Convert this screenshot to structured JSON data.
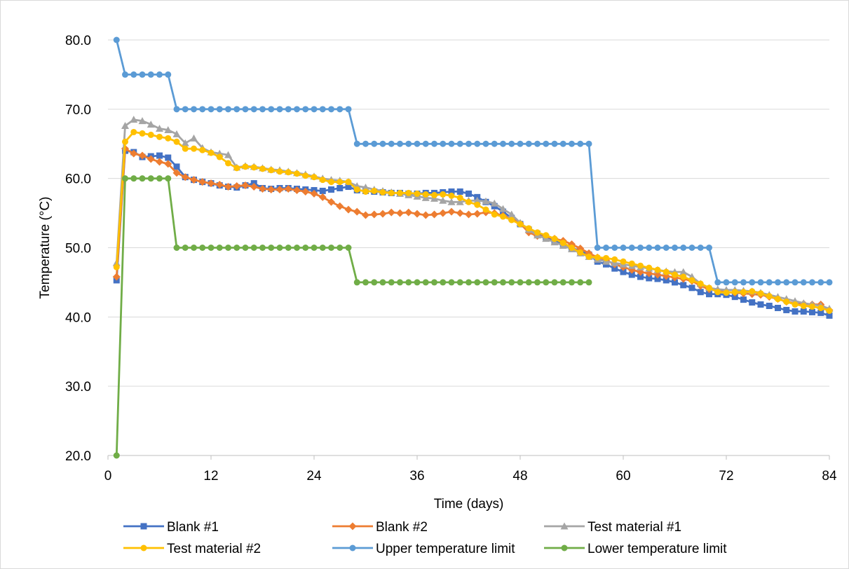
{
  "chart_data": {
    "type": "line",
    "xlabel": "Time (days)",
    "ylabel": "Temperature (°C)",
    "xlim": [
      0,
      84
    ],
    "ylim": [
      20,
      80
    ],
    "x_ticks": [
      "0",
      "12",
      "24",
      "36",
      "48",
      "60",
      "72",
      "84"
    ],
    "y_ticks": [
      "20.0",
      "30.0",
      "40.0",
      "50.0",
      "60.0",
      "70.0",
      "80.0"
    ],
    "grid": "horizontal",
    "legend_position": "bottom",
    "series": [
      {
        "name": "Blank #1",
        "color": "#4472c4",
        "marker": "square",
        "x": [
          1,
          2,
          3,
          4,
          5,
          6,
          7,
          8,
          9,
          10,
          11,
          12,
          13,
          14,
          15,
          16,
          17,
          18,
          19,
          20,
          21,
          22,
          23,
          24,
          25,
          26,
          27,
          28,
          29,
          30,
          31,
          32,
          33,
          34,
          35,
          36,
          37,
          38,
          39,
          40,
          41,
          42,
          43,
          44,
          45,
          46,
          47,
          48,
          49,
          50,
          51,
          52,
          53,
          54,
          55,
          56,
          57,
          58,
          59,
          60,
          61,
          62,
          63,
          64,
          65,
          66,
          67,
          68,
          69,
          70,
          71,
          72,
          73,
          74,
          75,
          76,
          77,
          78,
          79,
          80,
          81,
          82,
          83,
          84
        ],
        "y": [
          45.3,
          64.0,
          63.8,
          63.1,
          63.2,
          63.3,
          63.0,
          61.7,
          60.2,
          59.8,
          59.5,
          59.3,
          59.0,
          58.8,
          58.7,
          59.0,
          59.3,
          58.6,
          58.5,
          58.6,
          58.6,
          58.5,
          58.4,
          58.3,
          58.2,
          58.4,
          58.6,
          58.8,
          58.3,
          58.2,
          58.1,
          58.0,
          57.9,
          57.9,
          57.8,
          57.8,
          57.9,
          57.9,
          58.0,
          58.1,
          58.1,
          57.8,
          57.3,
          56.6,
          56.0,
          55.2,
          54.3,
          53.4,
          52.6,
          52.0,
          51.5,
          51.0,
          50.5,
          50.0,
          49.5,
          49.0,
          48.0,
          47.6,
          47.0,
          46.5,
          46.1,
          45.8,
          45.6,
          45.5,
          45.3,
          45.0,
          44.6,
          44.2,
          43.6,
          43.3,
          43.3,
          43.2,
          42.9,
          42.5,
          42.1,
          41.8,
          41.6,
          41.3,
          41.0,
          40.8,
          40.8,
          40.7,
          40.6,
          40.2
        ]
      },
      {
        "name": "Blank #2",
        "color": "#ed7d31",
        "marker": "diamond",
        "x": [
          1,
          2,
          3,
          4,
          5,
          6,
          7,
          8,
          9,
          10,
          11,
          12,
          13,
          14,
          15,
          16,
          17,
          18,
          19,
          20,
          21,
          22,
          23,
          24,
          25,
          26,
          27,
          28,
          29,
          30,
          31,
          32,
          33,
          34,
          35,
          36,
          37,
          38,
          39,
          40,
          41,
          42,
          43,
          44,
          45,
          46,
          47,
          48,
          49,
          50,
          51,
          52,
          53,
          54,
          55,
          56,
          57,
          58,
          59,
          60,
          61,
          62,
          63,
          64,
          65,
          66,
          67,
          68,
          69,
          70,
          71,
          72,
          73,
          74,
          75,
          76,
          77,
          78,
          79,
          80,
          81,
          82,
          83,
          84
        ],
        "y": [
          45.8,
          64.3,
          63.6,
          63.3,
          62.8,
          62.4,
          62.1,
          60.8,
          60.2,
          59.8,
          59.5,
          59.3,
          59.1,
          58.8,
          58.9,
          59.0,
          58.8,
          58.5,
          58.4,
          58.4,
          58.5,
          58.3,
          58.1,
          57.8,
          57.3,
          56.6,
          56.0,
          55.5,
          55.2,
          54.7,
          54.8,
          54.9,
          55.1,
          55.0,
          55.1,
          54.9,
          54.7,
          54.8,
          55.0,
          55.2,
          55.0,
          54.8,
          54.9,
          55.1,
          55.0,
          54.6,
          54.2,
          53.5,
          52.2,
          51.7,
          51.6,
          51.3,
          51.0,
          50.5,
          49.9,
          49.2,
          48.6,
          48.2,
          47.6,
          47.2,
          46.8,
          46.5,
          46.3,
          46.1,
          45.9,
          45.7,
          45.5,
          45.2,
          44.5,
          44.0,
          43.8,
          43.6,
          43.5,
          43.4,
          43.3,
          43.2,
          42.9,
          42.6,
          42.2,
          42.0,
          41.9,
          41.8,
          41.8,
          41.0
        ]
      },
      {
        "name": "Test material #1",
        "color": "#a5a5a5",
        "marker": "triangle",
        "x": [
          1,
          2,
          3,
          4,
          5,
          6,
          7,
          8,
          9,
          10,
          11,
          12,
          13,
          14,
          15,
          16,
          17,
          18,
          19,
          20,
          21,
          22,
          23,
          24,
          25,
          26,
          27,
          28,
          29,
          30,
          31,
          32,
          33,
          34,
          35,
          36,
          37,
          38,
          39,
          40,
          41,
          42,
          43,
          44,
          45,
          46,
          47,
          48,
          49,
          50,
          51,
          52,
          53,
          54,
          55,
          56,
          57,
          58,
          59,
          60,
          61,
          62,
          63,
          64,
          65,
          66,
          67,
          68,
          69,
          70,
          71,
          72,
          73,
          74,
          75,
          76,
          77,
          78,
          79,
          80,
          81,
          82,
          83,
          84
        ],
        "y": [
          47.8,
          67.6,
          68.5,
          68.3,
          67.8,
          67.2,
          67.0,
          66.4,
          65.1,
          65.8,
          64.4,
          63.8,
          63.6,
          63.4,
          61.6,
          61.8,
          61.7,
          61.5,
          61.3,
          61.2,
          61.0,
          60.8,
          60.6,
          60.3,
          60.0,
          59.8,
          59.7,
          59.5,
          58.9,
          58.7,
          58.4,
          58.2,
          58.0,
          57.8,
          57.6,
          57.4,
          57.2,
          57.1,
          56.8,
          56.6,
          56.6,
          56.8,
          56.8,
          56.7,
          56.4,
          55.6,
          54.8,
          53.6,
          52.6,
          51.8,
          51.3,
          50.8,
          50.3,
          49.8,
          49.2,
          48.7,
          48.3,
          48.0,
          47.8,
          47.6,
          47.4,
          47.2,
          47.0,
          46.8,
          46.6,
          46.5,
          46.5,
          45.8,
          44.8,
          44.2,
          44.0,
          43.9,
          43.9,
          43.8,
          43.7,
          43.5,
          43.2,
          42.9,
          42.6,
          42.3,
          42.0,
          41.8,
          41.6,
          41.2
        ]
      },
      {
        "name": "Test material #2",
        "color": "#ffc000",
        "marker": "circle",
        "x": [
          1,
          2,
          3,
          4,
          5,
          6,
          7,
          8,
          9,
          10,
          11,
          12,
          13,
          14,
          15,
          16,
          17,
          18,
          19,
          20,
          21,
          22,
          23,
          24,
          25,
          26,
          27,
          28,
          29,
          30,
          31,
          32,
          33,
          34,
          35,
          36,
          37,
          38,
          39,
          40,
          41,
          42,
          43,
          44,
          45,
          46,
          47,
          48,
          49,
          50,
          51,
          52,
          53,
          54,
          55,
          56,
          57,
          58,
          59,
          60,
          61,
          62,
          63,
          64,
          65,
          66,
          67,
          68,
          69,
          70,
          71,
          72,
          73,
          74,
          75,
          76,
          77,
          78,
          79,
          80,
          81,
          82,
          83,
          84
        ],
        "y": [
          47.2,
          65.3,
          66.7,
          66.5,
          66.3,
          66.0,
          65.8,
          65.3,
          64.3,
          64.3,
          64.1,
          63.7,
          63.1,
          62.2,
          61.5,
          61.7,
          61.6,
          61.4,
          61.2,
          61.0,
          60.9,
          60.7,
          60.4,
          60.2,
          59.8,
          59.5,
          59.5,
          59.5,
          58.4,
          58.1,
          58.2,
          58.0,
          57.9,
          57.9,
          57.9,
          57.8,
          57.7,
          57.6,
          57.7,
          57.5,
          57.2,
          56.6,
          56.2,
          55.5,
          54.8,
          54.5,
          54.0,
          53.4,
          52.8,
          52.2,
          51.8,
          51.3,
          50.7,
          50.0,
          49.3,
          48.7,
          48.6,
          48.5,
          48.3,
          48.0,
          47.7,
          47.4,
          47.1,
          46.8,
          46.5,
          46.1,
          45.8,
          45.3,
          44.8,
          44.2,
          43.6,
          43.5,
          43.6,
          43.6,
          43.7,
          43.4,
          43.0,
          42.6,
          42.2,
          41.8,
          41.6,
          41.5,
          41.3,
          40.9
        ]
      },
      {
        "name": "Upper temperature limit",
        "color": "#5b9bd5",
        "marker": "circle",
        "x": [
          1,
          2,
          3,
          4,
          5,
          6,
          7,
          8,
          9,
          10,
          11,
          12,
          13,
          14,
          15,
          16,
          17,
          18,
          19,
          20,
          21,
          22,
          23,
          24,
          25,
          26,
          27,
          28,
          29,
          30,
          31,
          32,
          33,
          34,
          35,
          36,
          37,
          38,
          39,
          40,
          41,
          42,
          43,
          44,
          45,
          46,
          47,
          48,
          49,
          50,
          51,
          52,
          53,
          54,
          55,
          56,
          57,
          58,
          59,
          60,
          61,
          62,
          63,
          64,
          65,
          66,
          67,
          68,
          69,
          70,
          71,
          72,
          73,
          74,
          75,
          76,
          77,
          78,
          79,
          80,
          81,
          82,
          83,
          84
        ],
        "y": [
          80,
          75,
          75,
          75,
          75,
          75,
          75,
          70,
          70,
          70,
          70,
          70,
          70,
          70,
          70,
          70,
          70,
          70,
          70,
          70,
          70,
          70,
          70,
          70,
          70,
          70,
          70,
          70,
          65,
          65,
          65,
          65,
          65,
          65,
          65,
          65,
          65,
          65,
          65,
          65,
          65,
          65,
          65,
          65,
          65,
          65,
          65,
          65,
          65,
          65,
          65,
          65,
          65,
          65,
          65,
          65,
          50,
          50,
          50,
          50,
          50,
          50,
          50,
          50,
          50,
          50,
          50,
          50,
          50,
          50,
          45,
          45,
          45,
          45,
          45,
          45,
          45,
          45,
          45,
          45,
          45,
          45,
          45,
          45
        ]
      },
      {
        "name": "Lower temperature limit",
        "color": "#70ad47",
        "marker": "circle",
        "x": [
          1,
          2,
          3,
          4,
          5,
          6,
          7,
          8,
          9,
          10,
          11,
          12,
          13,
          14,
          15,
          16,
          17,
          18,
          19,
          20,
          21,
          22,
          23,
          24,
          25,
          26,
          27,
          28,
          29,
          30,
          31,
          32,
          33,
          34,
          35,
          36,
          37,
          38,
          39,
          40,
          41,
          42,
          43,
          44,
          45,
          46,
          47,
          48,
          49,
          50,
          51,
          52,
          53,
          54,
          55,
          56
        ],
        "y": [
          20,
          60,
          60,
          60,
          60,
          60,
          60,
          50,
          50,
          50,
          50,
          50,
          50,
          50,
          50,
          50,
          50,
          50,
          50,
          50,
          50,
          50,
          50,
          50,
          50,
          50,
          50,
          50,
          45,
          45,
          45,
          45,
          45,
          45,
          45,
          45,
          45,
          45,
          45,
          45,
          45,
          45,
          45,
          45,
          45,
          45,
          45,
          45,
          45,
          45,
          45,
          45,
          45,
          45,
          45,
          45
        ]
      }
    ]
  }
}
